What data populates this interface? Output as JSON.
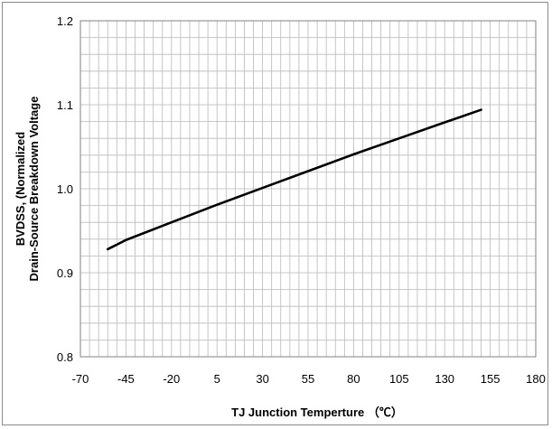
{
  "chart_data": {
    "type": "line",
    "title": "",
    "xlabel": "TJ Junction Temperture （℃）",
    "ylabel_line1": "BVDSS, (Normalized",
    "ylabel_line2": "Drain-Source Breakdown Voltage",
    "xlim": [
      -70,
      180
    ],
    "ylim": [
      0.8,
      1.2
    ],
    "x_ticks": [
      -70,
      -45,
      -20,
      5,
      30,
      55,
      80,
      105,
      130,
      155,
      180
    ],
    "y_ticks": [
      "0.8",
      "0.9",
      "1.0",
      "1.1",
      "1.2"
    ],
    "x_minor_step": 5,
    "y_minor_step": 0.02,
    "grid": true,
    "legend": "none",
    "series": [
      {
        "color": "#000000",
        "x": [
          -55,
          -45,
          -20,
          5,
          30,
          55,
          80,
          105,
          130,
          150
        ],
        "y": [
          0.928,
          0.939,
          0.96,
          0.981,
          1.001,
          1.021,
          1.041,
          1.06,
          1.079,
          1.094
        ]
      }
    ]
  }
}
